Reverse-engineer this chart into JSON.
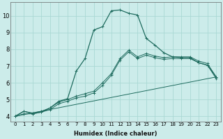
{
  "xlabel": "Humidex (Indice chaleur)",
  "bg_color": "#ccecea",
  "grid_color": "#aad8d4",
  "line_color": "#1e6b5e",
  "xlim": [
    -0.5,
    23.5
  ],
  "ylim": [
    3.7,
    10.8
  ],
  "yticks": [
    4,
    5,
    6,
    7,
    8,
    9,
    10
  ],
  "xticks": [
    0,
    1,
    2,
    3,
    4,
    5,
    6,
    7,
    8,
    9,
    10,
    11,
    12,
    13,
    14,
    15,
    16,
    17,
    18,
    19,
    20,
    21,
    22,
    23
  ],
  "curve_x": [
    0,
    1,
    2,
    3,
    4,
    5,
    6,
    7,
    8,
    9,
    10,
    11,
    12,
    13,
    14,
    15,
    16,
    17,
    18,
    19,
    20,
    21,
    22,
    23
  ],
  "curve_y": [
    4.0,
    4.3,
    4.15,
    4.25,
    4.5,
    4.9,
    5.05,
    6.7,
    7.45,
    9.15,
    9.35,
    10.3,
    10.35,
    10.15,
    10.05,
    8.65,
    8.25,
    7.8,
    7.55,
    7.5,
    7.5,
    7.2,
    7.05,
    6.35
  ],
  "line2_x": [
    0,
    1,
    2,
    3,
    4,
    5,
    6,
    7,
    8,
    9,
    10,
    11,
    12,
    13,
    14,
    15,
    16,
    17,
    18,
    19,
    20,
    21,
    22,
    23
  ],
  "line2_y": [
    4.0,
    4.3,
    4.2,
    4.3,
    4.5,
    4.85,
    5.0,
    5.2,
    5.35,
    5.5,
    6.0,
    6.55,
    7.45,
    7.95,
    7.55,
    7.75,
    7.6,
    7.5,
    7.55,
    7.55,
    7.55,
    7.3,
    7.15,
    6.35
  ],
  "line3_x": [
    0,
    1,
    2,
    3,
    4,
    5,
    6,
    7,
    8,
    9,
    10,
    11,
    12,
    13,
    14,
    15,
    16,
    17,
    18,
    19,
    20,
    21,
    22,
    23
  ],
  "line3_y": [
    4.0,
    4.15,
    4.15,
    4.25,
    4.4,
    4.75,
    4.9,
    5.1,
    5.2,
    5.4,
    5.85,
    6.45,
    7.35,
    7.85,
    7.45,
    7.65,
    7.5,
    7.4,
    7.45,
    7.45,
    7.45,
    7.2,
    7.05,
    6.25
  ],
  "line4_x": [
    0,
    23
  ],
  "line4_y": [
    4.0,
    6.35
  ]
}
